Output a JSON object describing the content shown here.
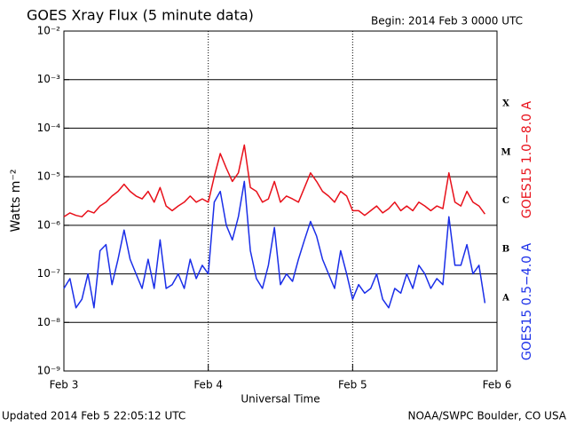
{
  "chart_data": {
    "type": "line",
    "title": "GOES Xray Flux (5 minute data)",
    "subtitle": "Begin:  2014 Feb 3 0000 UTC",
    "xlabel": "Universal Time",
    "ylabel": "Watts m⁻²",
    "footer_left": "Updated 2014 Feb  5 22:05:12 UTC",
    "footer_right": "NOAA/SWPC Boulder, CO USA",
    "log_scale_y": true,
    "grid": true,
    "xlim": [
      0,
      72
    ],
    "xticks": [
      {
        "value": 0,
        "label": "Feb 3"
      },
      {
        "value": 24,
        "label": "Feb 4"
      },
      {
        "value": 48,
        "label": "Feb 5"
      },
      {
        "value": 72,
        "label": "Feb 6"
      }
    ],
    "ylim": [
      1e-09,
      0.01
    ],
    "yticks": [
      {
        "value": 0.01,
        "label": "10⁻²"
      },
      {
        "value": 0.001,
        "label": "10⁻³"
      },
      {
        "value": 0.0001,
        "label": "10⁻⁴"
      },
      {
        "value": 1e-05,
        "label": "10⁻⁵"
      },
      {
        "value": 1e-06,
        "label": "10⁻⁶"
      },
      {
        "value": 1e-07,
        "label": "10⁻⁷"
      },
      {
        "value": 1e-08,
        "label": "10⁻⁸"
      },
      {
        "value": 1e-09,
        "label": "10⁻⁹"
      }
    ],
    "class_labels": [
      "X",
      "M",
      "C",
      "B",
      "A"
    ],
    "x": [
      0,
      1,
      2,
      3,
      4,
      5,
      6,
      7,
      8,
      9,
      10,
      11,
      12,
      13,
      14,
      15,
      16,
      17,
      18,
      19,
      20,
      21,
      22,
      23,
      24,
      25,
      26,
      27,
      28,
      29,
      30,
      31,
      32,
      33,
      34,
      35,
      36,
      37,
      38,
      39,
      40,
      41,
      42,
      43,
      44,
      45,
      46,
      47,
      48,
      49,
      50,
      51,
      52,
      53,
      54,
      55,
      56,
      57,
      58,
      59,
      60,
      61,
      62,
      63,
      64,
      65,
      66,
      67,
      68,
      69,
      70
    ],
    "series": [
      {
        "name": "GOES15 1.0−8.0 A",
        "color": "#e8101a",
        "values": [
          1.5e-06,
          1.8e-06,
          1.6e-06,
          1.5e-06,
          2e-06,
          1.8e-06,
          2.5e-06,
          3e-06,
          4e-06,
          5e-06,
          7e-06,
          5e-06,
          4e-06,
          3.5e-06,
          5e-06,
          3e-06,
          6e-06,
          2.5e-06,
          2e-06,
          2.5e-06,
          3e-06,
          4e-06,
          3e-06,
          3.5e-06,
          3e-06,
          1e-05,
          3e-05,
          1.5e-05,
          8e-06,
          1.2e-05,
          4.5e-05,
          6e-06,
          5e-06,
          3e-06,
          3.5e-06,
          8e-06,
          3e-06,
          4e-06,
          3.5e-06,
          3e-06,
          6e-06,
          1.2e-05,
          8e-06,
          5e-06,
          4e-06,
          3e-06,
          5e-06,
          4e-06,
          2e-06,
          2e-06,
          1.6e-06,
          2e-06,
          2.5e-06,
          1.8e-06,
          2.2e-06,
          3e-06,
          2e-06,
          2.5e-06,
          2e-06,
          3e-06,
          2.5e-06,
          2e-06,
          2.5e-06,
          2.2e-06,
          1.2e-05,
          3e-06,
          2.5e-06,
          5e-06,
          3e-06,
          2.5e-06,
          1.7e-06
        ]
      },
      {
        "name": "GOES15 0.5−4.0 A",
        "color": "#1a2ee8",
        "values": [
          5e-08,
          8e-08,
          2e-08,
          3e-08,
          1e-07,
          2e-08,
          3e-07,
          4e-07,
          6e-08,
          2e-07,
          8e-07,
          2e-07,
          1e-07,
          5e-08,
          2e-07,
          5e-08,
          5e-07,
          5e-08,
          6e-08,
          1e-07,
          5e-08,
          2e-07,
          8e-08,
          1.5e-07,
          1e-07,
          3e-06,
          5e-06,
          1e-06,
          5e-07,
          1.5e-06,
          8e-06,
          3e-07,
          8e-08,
          5e-08,
          1.5e-07,
          9e-07,
          6e-08,
          1e-07,
          7e-08,
          2e-07,
          5e-07,
          1.2e-06,
          6e-07,
          2e-07,
          1e-07,
          5e-08,
          3e-07,
          1e-07,
          3e-08,
          6e-08,
          4e-08,
          5e-08,
          1e-07,
          3e-08,
          2e-08,
          5e-08,
          4e-08,
          1e-07,
          5e-08,
          1.5e-07,
          1e-07,
          5e-08,
          8e-08,
          6e-08,
          1.5e-06,
          1.5e-07,
          1.5e-07,
          4e-07,
          1e-07,
          1.5e-07,
          2.5e-08
        ]
      }
    ]
  }
}
